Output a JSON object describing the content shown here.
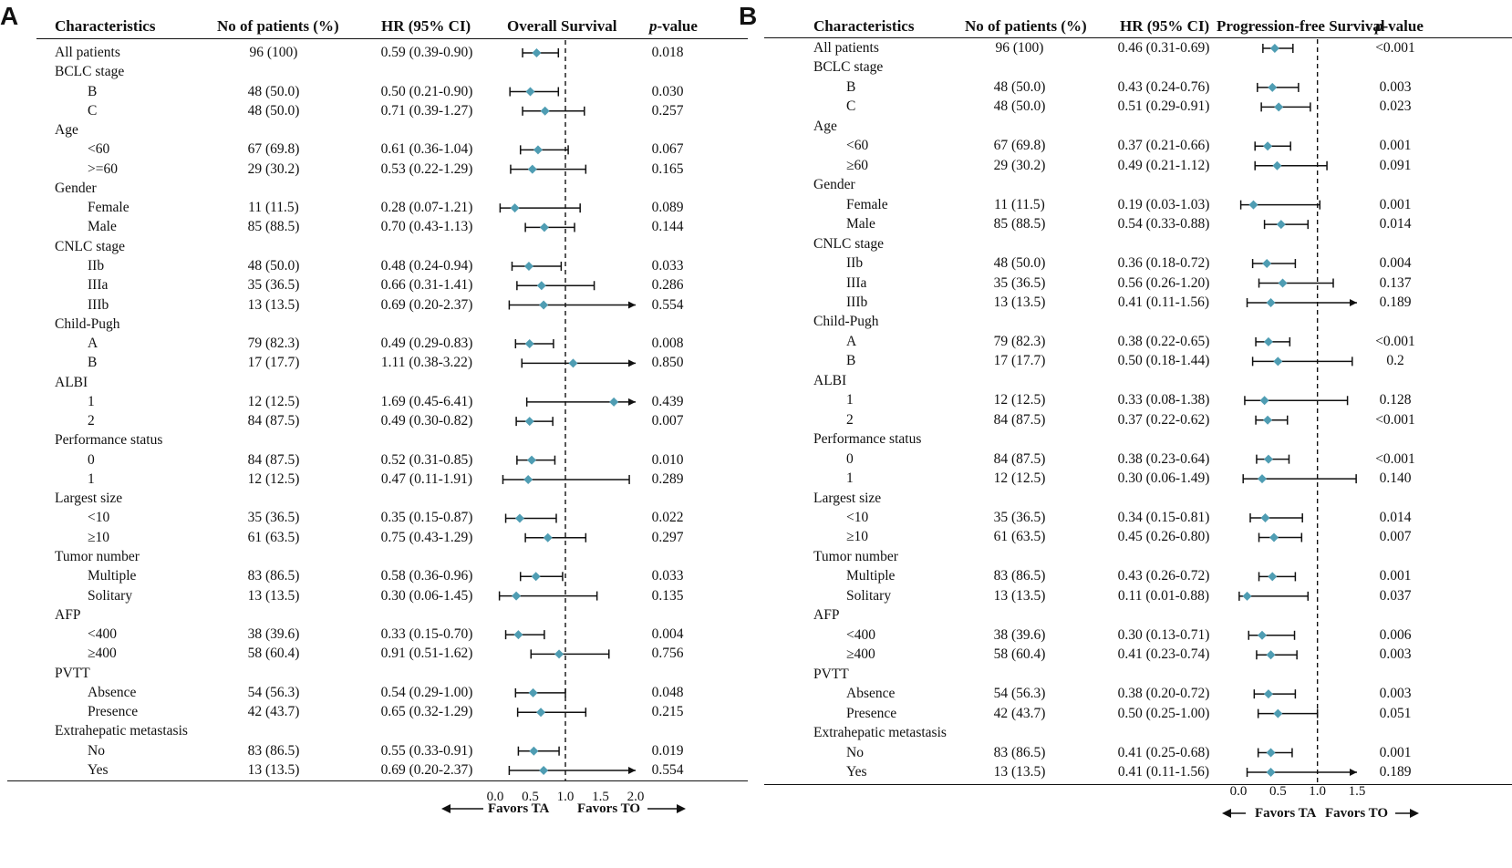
{
  "panels": [
    {
      "letter": "A",
      "headers": {
        "characteristics": "Characteristics",
        "patients": "No of patients (%)",
        "hr": "HR (95% CI)",
        "plot": "Overall Survival",
        "p_italic": "p",
        "p_rest": "-value"
      },
      "axis_ticks": [
        "0.0",
        "0.5",
        "1.0",
        "1.5",
        "2.0"
      ],
      "favors_left": "Favors TA",
      "favors_right": "Favors TO",
      "marker_color": "#4f9db3",
      "rows": [
        {
          "label": "All patients",
          "type": "item",
          "indent": 0,
          "n": "96 (100)",
          "hr_text": "0.59 (0.39-0.90)",
          "p": "0.018",
          "hr": 0.59,
          "lo": 0.39,
          "hi": 0.9
        },
        {
          "label": "BCLC stage",
          "type": "cat"
        },
        {
          "label": "B",
          "type": "item",
          "indent": 1,
          "n": "48 (50.0)",
          "hr_text": "0.50 (0.21-0.90)",
          "p": "0.030",
          "hr": 0.5,
          "lo": 0.21,
          "hi": 0.9
        },
        {
          "label": "C",
          "type": "item",
          "indent": 1,
          "n": "48 (50.0)",
          "hr_text": "0.71 (0.39-1.27)",
          "p": "0.257",
          "hr": 0.71,
          "lo": 0.39,
          "hi": 1.27
        },
        {
          "label": "Age",
          "type": "cat"
        },
        {
          "label": "<60",
          "type": "item",
          "indent": 1,
          "n": "67 (69.8)",
          "hr_text": "0.61 (0.36-1.04)",
          "p": "0.067",
          "hr": 0.61,
          "lo": 0.36,
          "hi": 1.04
        },
        {
          "label": ">=60",
          "type": "item",
          "indent": 1,
          "n": "29 (30.2)",
          "hr_text": "0.53 (0.22-1.29)",
          "p": "0.165",
          "hr": 0.53,
          "lo": 0.22,
          "hi": 1.29
        },
        {
          "label": "Gender",
          "type": "cat"
        },
        {
          "label": "Female",
          "type": "item",
          "indent": 1,
          "n": "11 (11.5)",
          "hr_text": "0.28 (0.07-1.21)",
          "p": "0.089",
          "hr": 0.28,
          "lo": 0.07,
          "hi": 1.21
        },
        {
          "label": "Male",
          "type": "item",
          "indent": 1,
          "n": "85 (88.5)",
          "hr_text": "0.70 (0.43-1.13)",
          "p": "0.144",
          "hr": 0.7,
          "lo": 0.43,
          "hi": 1.13
        },
        {
          "label": "CNLC stage",
          "type": "cat"
        },
        {
          "label": "IIb",
          "type": "item",
          "indent": 1,
          "n": "48 (50.0)",
          "hr_text": "0.48 (0.24-0.94)",
          "p": "0.033",
          "hr": 0.48,
          "lo": 0.24,
          "hi": 0.94
        },
        {
          "label": "IIIa",
          "type": "item",
          "indent": 1,
          "n": "35 (36.5)",
          "hr_text": "0.66 (0.31-1.41)",
          "p": "0.286",
          "hr": 0.66,
          "lo": 0.31,
          "hi": 1.41
        },
        {
          "label": "IIIb",
          "type": "item",
          "indent": 1,
          "n": "13 (13.5)",
          "hr_text": "0.69 (0.20-2.37)",
          "p": "0.554",
          "hr": 0.69,
          "lo": 0.2,
          "hi": 2.37
        },
        {
          "label": "Child-Pugh",
          "type": "cat"
        },
        {
          "label": "A",
          "type": "item",
          "indent": 1,
          "n": "79 (82.3)",
          "hr_text": "0.49 (0.29-0.83)",
          "p": "0.008",
          "hr": 0.49,
          "lo": 0.29,
          "hi": 0.83
        },
        {
          "label": "B",
          "type": "item",
          "indent": 1,
          "n": "17 (17.7)",
          "hr_text": "1.11 (0.38-3.22)",
          "p": "0.850",
          "hr": 1.11,
          "lo": 0.38,
          "hi": 3.22
        },
        {
          "label": "ALBI",
          "type": "cat"
        },
        {
          "label": "1",
          "type": "item",
          "indent": 1,
          "n": "12 (12.5)",
          "hr_text": "1.69 (0.45-6.41)",
          "p": "0.439",
          "hr": 1.69,
          "lo": 0.45,
          "hi": 6.41
        },
        {
          "label": "2",
          "type": "item",
          "indent": 1,
          "n": "84 (87.5)",
          "hr_text": "0.49 (0.30-0.82)",
          "p": "0.007",
          "hr": 0.49,
          "lo": 0.3,
          "hi": 0.82
        },
        {
          "label": "Performance status",
          "type": "cat"
        },
        {
          "label": "0",
          "type": "item",
          "indent": 1,
          "n": "84 (87.5)",
          "hr_text": "0.52 (0.31-0.85)",
          "p": "0.010",
          "hr": 0.52,
          "lo": 0.31,
          "hi": 0.85
        },
        {
          "label": "1",
          "type": "item",
          "indent": 1,
          "n": "12 (12.5)",
          "hr_text": "0.47 (0.11-1.91)",
          "p": "0.289",
          "hr": 0.47,
          "lo": 0.11,
          "hi": 1.91
        },
        {
          "label": "Largest size",
          "type": "cat"
        },
        {
          "label": "<10",
          "type": "item",
          "indent": 1,
          "n": "35 (36.5)",
          "hr_text": "0.35 (0.15-0.87)",
          "p": "0.022",
          "hr": 0.35,
          "lo": 0.15,
          "hi": 0.87
        },
        {
          "label": "≥10",
          "type": "item",
          "indent": 1,
          "n": "61 (63.5)",
          "hr_text": "0.75 (0.43-1.29)",
          "p": "0.297",
          "hr": 0.75,
          "lo": 0.43,
          "hi": 1.29
        },
        {
          "label": "Tumor number",
          "type": "cat"
        },
        {
          "label": "Multiple",
          "type": "item",
          "indent": 1,
          "n": "83 (86.5)",
          "hr_text": "0.58 (0.36-0.96)",
          "p": "0.033",
          "hr": 0.58,
          "lo": 0.36,
          "hi": 0.96
        },
        {
          "label": "Solitary",
          "type": "item",
          "indent": 1,
          "n": "13 (13.5)",
          "hr_text": "0.30 (0.06-1.45)",
          "p": "0.135",
          "hr": 0.3,
          "lo": 0.06,
          "hi": 1.45
        },
        {
          "label": "AFP",
          "type": "cat"
        },
        {
          "label": "<400",
          "type": "item",
          "indent": 1,
          "n": "38 (39.6)",
          "hr_text": "0.33 (0.15-0.70)",
          "p": "0.004",
          "hr": 0.33,
          "lo": 0.15,
          "hi": 0.7
        },
        {
          "label": "≥400",
          "type": "item",
          "indent": 1,
          "n": "58 (60.4)",
          "hr_text": "0.91 (0.51-1.62)",
          "p": "0.756",
          "hr": 0.91,
          "lo": 0.51,
          "hi": 1.62
        },
        {
          "label": "PVTT",
          "type": "cat"
        },
        {
          "label": "Absence",
          "type": "item",
          "indent": 1,
          "n": "54 (56.3)",
          "hr_text": "0.54 (0.29-1.00)",
          "p": "0.048",
          "hr": 0.54,
          "lo": 0.29,
          "hi": 1.0
        },
        {
          "label": "Presence",
          "type": "item",
          "indent": 1,
          "n": "42 (43.7)",
          "hr_text": "0.65 (0.32-1.29)",
          "p": "0.215",
          "hr": 0.65,
          "lo": 0.32,
          "hi": 1.29
        },
        {
          "label": "Extrahepatic metastasis",
          "type": "cat"
        },
        {
          "label": "No",
          "type": "item",
          "indent": 1,
          "n": "83 (86.5)",
          "hr_text": "0.55 (0.33-0.91)",
          "p": "0.019",
          "hr": 0.55,
          "lo": 0.33,
          "hi": 0.91
        },
        {
          "label": "Yes",
          "type": "item",
          "indent": 1,
          "n": "13 (13.5)",
          "hr_text": "0.69 (0.20-2.37)",
          "p": "0.554",
          "hr": 0.69,
          "lo": 0.2,
          "hi": 2.37
        }
      ]
    },
    {
      "letter": "B",
      "headers": {
        "characteristics": "Characteristics",
        "patients": "No of patients (%)",
        "hr": "HR (95% CI)",
        "plot": "Progression-free Survival",
        "p_italic": "p",
        "p_rest": "-value"
      },
      "axis_ticks": [
        "0.0",
        "0.5",
        "1.0",
        "1.5"
      ],
      "favors_left": "Favors TA",
      "favors_right": "Favors TO",
      "marker_color": "#4f9db3",
      "rows": [
        {
          "label": "All patients",
          "type": "item",
          "indent": 0,
          "n": "96 (100)",
          "hr_text": "0.46 (0.31-0.69)",
          "p": "<0.001",
          "hr": 0.46,
          "lo": 0.31,
          "hi": 0.69
        },
        {
          "label": "BCLC stage",
          "type": "cat"
        },
        {
          "label": "B",
          "type": "item",
          "indent": 1,
          "n": "48 (50.0)",
          "hr_text": "0.43 (0.24-0.76)",
          "p": "0.003",
          "hr": 0.43,
          "lo": 0.24,
          "hi": 0.76
        },
        {
          "label": "C",
          "type": "item",
          "indent": 1,
          "n": "48 (50.0)",
          "hr_text": "0.51 (0.29-0.91)",
          "p": "0.023",
          "hr": 0.51,
          "lo": 0.29,
          "hi": 0.91
        },
        {
          "label": "Age",
          "type": "cat"
        },
        {
          "label": "<60",
          "type": "item",
          "indent": 1,
          "n": "67 (69.8)",
          "hr_text": "0.37 (0.21-0.66)",
          "p": "0.001",
          "hr": 0.37,
          "lo": 0.21,
          "hi": 0.66
        },
        {
          "label": "≥60",
          "type": "item",
          "indent": 1,
          "n": "29 (30.2)",
          "hr_text": "0.49 (0.21-1.12)",
          "p": "0.091",
          "hr": 0.49,
          "lo": 0.21,
          "hi": 1.12
        },
        {
          "label": "Gender",
          "type": "cat"
        },
        {
          "label": "Female",
          "type": "item",
          "indent": 1,
          "n": "11 (11.5)",
          "hr_text": "0.19 (0.03-1.03)",
          "p": "0.001",
          "hr": 0.19,
          "lo": 0.03,
          "hi": 1.03
        },
        {
          "label": "Male",
          "type": "item",
          "indent": 1,
          "n": "85 (88.5)",
          "hr_text": "0.54 (0.33-0.88)",
          "p": "0.014",
          "hr": 0.54,
          "lo": 0.33,
          "hi": 0.88
        },
        {
          "label": "CNLC stage",
          "type": "cat"
        },
        {
          "label": "IIb",
          "type": "item",
          "indent": 1,
          "n": "48 (50.0)",
          "hr_text": "0.36 (0.18-0.72)",
          "p": "0.004",
          "hr": 0.36,
          "lo": 0.18,
          "hi": 0.72
        },
        {
          "label": "IIIa",
          "type": "item",
          "indent": 1,
          "n": "35 (36.5)",
          "hr_text": "0.56 (0.26-1.20)",
          "p": "0.137",
          "hr": 0.56,
          "lo": 0.26,
          "hi": 1.2
        },
        {
          "label": "IIIb",
          "type": "item",
          "indent": 1,
          "n": "13 (13.5)",
          "hr_text": "0.41 (0.11-1.56)",
          "p": "0.189",
          "hr": 0.41,
          "lo": 0.11,
          "hi": 1.56
        },
        {
          "label": "Child-Pugh",
          "type": "cat"
        },
        {
          "label": "A",
          "type": "item",
          "indent": 1,
          "n": "79 (82.3)",
          "hr_text": "0.38 (0.22-0.65)",
          "p": "<0.001",
          "hr": 0.38,
          "lo": 0.22,
          "hi": 0.65
        },
        {
          "label": "B",
          "type": "item",
          "indent": 1,
          "n": "17 (17.7)",
          "hr_text": "0.50 (0.18-1.44)",
          "p": "0.2",
          "hr": 0.5,
          "lo": 0.18,
          "hi": 1.44
        },
        {
          "label": "ALBI",
          "type": "cat"
        },
        {
          "label": "1",
          "type": "item",
          "indent": 1,
          "n": "12 (12.5)",
          "hr_text": "0.33 (0.08-1.38)",
          "p": "0.128",
          "hr": 0.33,
          "lo": 0.08,
          "hi": 1.38
        },
        {
          "label": "2",
          "type": "item",
          "indent": 1,
          "n": "84 (87.5)",
          "hr_text": "0.37 (0.22-0.62)",
          "p": "<0.001",
          "hr": 0.37,
          "lo": 0.22,
          "hi": 0.62
        },
        {
          "label": "Performance status",
          "type": "cat"
        },
        {
          "label": "0",
          "type": "item",
          "indent": 1,
          "n": "84 (87.5)",
          "hr_text": "0.38 (0.23-0.64)",
          "p": "<0.001",
          "hr": 0.38,
          "lo": 0.23,
          "hi": 0.64
        },
        {
          "label": "1",
          "type": "item",
          "indent": 1,
          "n": "12 (12.5)",
          "hr_text": "0.30 (0.06-1.49)",
          "p": "0.140",
          "hr": 0.3,
          "lo": 0.06,
          "hi": 1.49
        },
        {
          "label": "Largest size",
          "type": "cat"
        },
        {
          "label": "<10",
          "type": "item",
          "indent": 1,
          "n": "35 (36.5)",
          "hr_text": "0.34 (0.15-0.81)",
          "p": "0.014",
          "hr": 0.34,
          "lo": 0.15,
          "hi": 0.81
        },
        {
          "label": "≥10",
          "type": "item",
          "indent": 1,
          "n": "61 (63.5)",
          "hr_text": "0.45 (0.26-0.80)",
          "p": "0.007",
          "hr": 0.45,
          "lo": 0.26,
          "hi": 0.8
        },
        {
          "label": "Tumor number",
          "type": "cat"
        },
        {
          "label": "Multiple",
          "type": "item",
          "indent": 1,
          "n": "83 (86.5)",
          "hr_text": "0.43 (0.26-0.72)",
          "p": "0.001",
          "hr": 0.43,
          "lo": 0.26,
          "hi": 0.72
        },
        {
          "label": "Solitary",
          "type": "item",
          "indent": 1,
          "n": "13 (13.5)",
          "hr_text": "0.11 (0.01-0.88)",
          "p": "0.037",
          "hr": 0.11,
          "lo": 0.01,
          "hi": 0.88
        },
        {
          "label": "AFP",
          "type": "cat"
        },
        {
          "label": "<400",
          "type": "item",
          "indent": 1,
          "n": "38 (39.6)",
          "hr_text": "0.30 (0.13-0.71)",
          "p": "0.006",
          "hr": 0.3,
          "lo": 0.13,
          "hi": 0.71
        },
        {
          "label": "≥400",
          "type": "item",
          "indent": 1,
          "n": "58 (60.4)",
          "hr_text": "0.41 (0.23-0.74)",
          "p": "0.003",
          "hr": 0.41,
          "lo": 0.23,
          "hi": 0.74
        },
        {
          "label": "PVTT",
          "type": "cat"
        },
        {
          "label": "Absence",
          "type": "item",
          "indent": 1,
          "n": "54 (56.3)",
          "hr_text": "0.38 (0.20-0.72)",
          "p": "0.003",
          "hr": 0.38,
          "lo": 0.2,
          "hi": 0.72
        },
        {
          "label": "Presence",
          "type": "item",
          "indent": 1,
          "n": "42 (43.7)",
          "hr_text": "0.50 (0.25-1.00)",
          "p": "0.051",
          "hr": 0.5,
          "lo": 0.25,
          "hi": 1.0
        },
        {
          "label": "Extrahepatic metastasis",
          "type": "cat"
        },
        {
          "label": "No",
          "type": "item",
          "indent": 1,
          "n": "83 (86.5)",
          "hr_text": "0.41 (0.25-0.68)",
          "p": "0.001",
          "hr": 0.41,
          "lo": 0.25,
          "hi": 0.68
        },
        {
          "label": "Yes",
          "type": "item",
          "indent": 1,
          "n": "13 (13.5)",
          "hr_text": "0.41 (0.11-1.56)",
          "p": "0.189",
          "hr": 0.41,
          "lo": 0.11,
          "hi": 1.56
        }
      ]
    }
  ],
  "chart_data": [
    {
      "type": "forest",
      "title": "Overall Survival",
      "xlabel": "HR (95% CI)",
      "xlim": [
        0.0,
        2.0
      ],
      "reference_line": 1.0,
      "categories": [
        "All patients",
        "BCLC B",
        "BCLC C",
        "Age <60",
        "Age >=60",
        "Female",
        "Male",
        "CNLC IIb",
        "CNLC IIIa",
        "CNLC IIIb",
        "Child-Pugh A",
        "Child-Pugh B",
        "ALBI 1",
        "ALBI 2",
        "PS 0",
        "PS 1",
        "Size <10",
        "Size ≥10",
        "Multiple",
        "Solitary",
        "AFP <400",
        "AFP ≥400",
        "PVTT Absence",
        "PVTT Presence",
        "EHM No",
        "EHM Yes"
      ],
      "hr": [
        0.59,
        0.5,
        0.71,
        0.61,
        0.53,
        0.28,
        0.7,
        0.48,
        0.66,
        0.69,
        0.49,
        1.11,
        1.69,
        0.49,
        0.52,
        0.47,
        0.35,
        0.75,
        0.58,
        0.3,
        0.33,
        0.91,
        0.54,
        0.65,
        0.55,
        0.69
      ],
      "lower": [
        0.39,
        0.21,
        0.39,
        0.36,
        0.22,
        0.07,
        0.43,
        0.24,
        0.31,
        0.2,
        0.29,
        0.38,
        0.45,
        0.3,
        0.31,
        0.11,
        0.15,
        0.43,
        0.36,
        0.06,
        0.15,
        0.51,
        0.29,
        0.32,
        0.33,
        0.2
      ],
      "upper": [
        0.9,
        0.9,
        1.27,
        1.04,
        1.29,
        1.21,
        1.13,
        0.94,
        1.41,
        2.37,
        0.83,
        3.22,
        6.41,
        0.82,
        0.85,
        1.91,
        0.87,
        1.29,
        0.96,
        1.45,
        0.7,
        1.62,
        1.0,
        1.29,
        0.91,
        2.37
      ]
    },
    {
      "type": "forest",
      "title": "Progression-free Survival",
      "xlabel": "HR (95% CI)",
      "xlim": [
        0.0,
        1.5
      ],
      "reference_line": 1.0,
      "categories": [
        "All patients",
        "BCLC B",
        "BCLC C",
        "Age <60",
        "Age ≥60",
        "Female",
        "Male",
        "CNLC IIb",
        "CNLC IIIa",
        "CNLC IIIb",
        "Child-Pugh A",
        "Child-Pugh B",
        "ALBI 1",
        "ALBI 2",
        "PS 0",
        "PS 1",
        "Size <10",
        "Size ≥10",
        "Multiple",
        "Solitary",
        "AFP <400",
        "AFP ≥400",
        "PVTT Absence",
        "PVTT Presence",
        "EHM No",
        "EHM Yes"
      ],
      "hr": [
        0.46,
        0.43,
        0.51,
        0.37,
        0.49,
        0.19,
        0.54,
        0.36,
        0.56,
        0.41,
        0.38,
        0.5,
        0.33,
        0.37,
        0.38,
        0.3,
        0.34,
        0.45,
        0.43,
        0.11,
        0.3,
        0.41,
        0.38,
        0.5,
        0.41,
        0.41
      ],
      "lower": [
        0.31,
        0.24,
        0.29,
        0.21,
        0.21,
        0.03,
        0.33,
        0.18,
        0.26,
        0.11,
        0.22,
        0.18,
        0.08,
        0.22,
        0.23,
        0.06,
        0.15,
        0.26,
        0.26,
        0.01,
        0.13,
        0.23,
        0.2,
        0.25,
        0.25,
        0.11
      ],
      "upper": [
        0.69,
        0.76,
        0.91,
        0.66,
        1.12,
        1.03,
        0.88,
        0.72,
        1.2,
        1.56,
        0.65,
        1.44,
        1.38,
        0.62,
        0.64,
        1.49,
        0.81,
        0.8,
        0.72,
        0.88,
        0.71,
        0.74,
        0.72,
        1.0,
        0.68,
        1.56
      ]
    }
  ]
}
